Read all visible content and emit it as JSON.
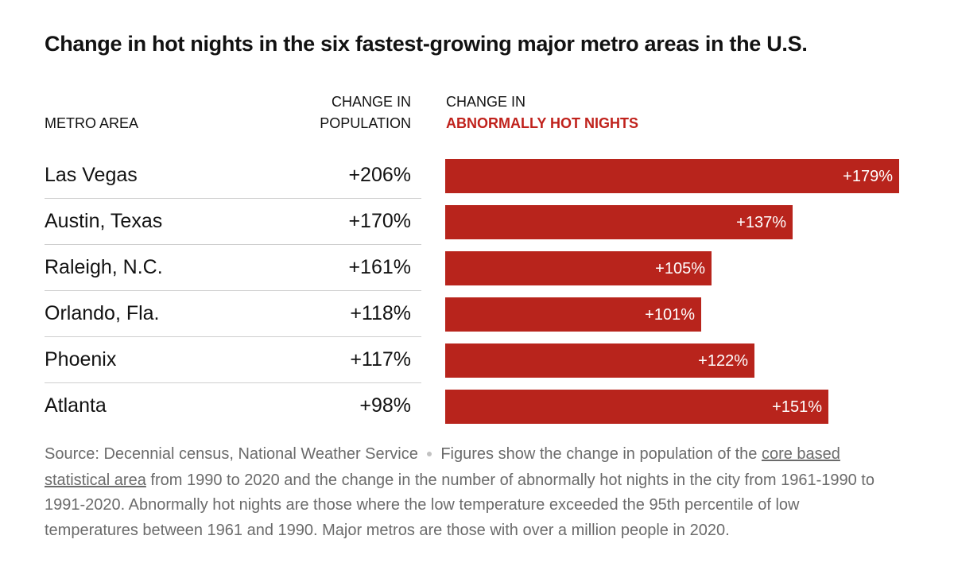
{
  "title": "Change in hot nights in the six fastest-growing major metro areas in the U.S.",
  "headers": {
    "metro": "METRO AREA",
    "population_line1": "CHANGE IN",
    "population_line2": "POPULATION",
    "nights_line1": "CHANGE IN",
    "nights_line2": "ABNORMALLY HOT NIGHTS"
  },
  "colors": {
    "bar": "#b8241c",
    "accent": "#c0221c"
  },
  "chart_data": {
    "type": "bar",
    "orientation": "horizontal",
    "categories": [
      "Las Vegas",
      "Austin, Texas",
      "Raleigh, N.C.",
      "Orlando, Fla.",
      "Phoenix",
      "Atlanta"
    ],
    "population_change": [
      "+206%",
      "+170%",
      "+161%",
      "+118%",
      "+117%",
      "+98%"
    ],
    "values": [
      179,
      137,
      105,
      101,
      122,
      151
    ],
    "value_labels": [
      "+179%",
      "+137%",
      "+105%",
      "+101%",
      "+122%",
      "+151%"
    ],
    "xlim": [
      0,
      179
    ]
  },
  "footnote": {
    "source": "Source: Decennial census, National Weather Service",
    "text_before_link": "Figures show the change in population of the ",
    "link": "core based statistical area",
    "text_after_link": " from 1990 to 2020 and the change in the number of abnormally hot nights in the city from 1961-1990 to 1991-2020. Abnormally hot nights are those where the low temperature exceeded the 95th percentile of low temperatures between 1961 and 1990. Major metros are those with over a million people in 2020."
  }
}
